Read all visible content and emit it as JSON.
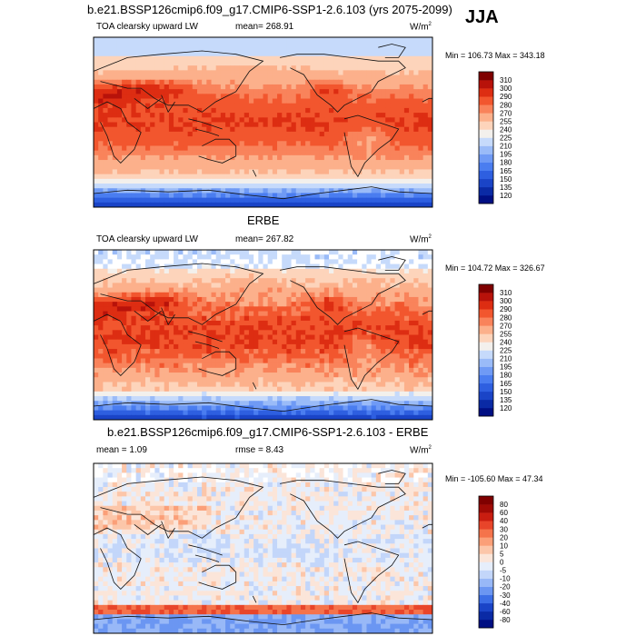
{
  "season": "JJA",
  "units_prefix": "W/m",
  "units_sup": "2",
  "chart_data": [
    {
      "type": "heatmap",
      "title": "b.e21.BSSP126cmip6.f09_g17.CMIP6-SSP1-2.6.103 (yrs 2075-2099)",
      "variable": "TOA clearsky upward LW",
      "mean_label": "mean= 268.91",
      "minmax_label": "Min = 106.73 Max = 343.18",
      "levels": [
        120,
        135,
        150,
        165,
        180,
        195,
        210,
        225,
        240,
        255,
        270,
        280,
        290,
        300,
        310
      ],
      "level_labels": [
        "120",
        "135",
        "150",
        "165",
        "180",
        "195",
        "210",
        "225",
        "240",
        "255",
        "270",
        "280",
        "290",
        "300",
        "310"
      ],
      "colors": [
        "#000f83",
        "#0a2aa5",
        "#1a44c7",
        "#2e5fe0",
        "#4a7df0",
        "#6f9af5",
        "#9abbf8",
        "#c6dafb",
        "#f3f0ec",
        "#fdd4bb",
        "#fcb08b",
        "#f9835b",
        "#f2562e",
        "#dd2d12",
        "#b8120a",
        "#7f0000"
      ],
      "grid": false
    },
    {
      "type": "heatmap",
      "title": "ERBE",
      "variable": "TOA clearsky upward LW",
      "mean_label": "mean= 267.82",
      "minmax_label": "Min = 104.72 Max = 326.67",
      "levels": [
        120,
        135,
        150,
        165,
        180,
        195,
        210,
        225,
        240,
        255,
        270,
        280,
        290,
        300,
        310
      ],
      "level_labels": [
        "120",
        "135",
        "150",
        "165",
        "180",
        "195",
        "210",
        "225",
        "240",
        "255",
        "270",
        "280",
        "290",
        "300",
        "310"
      ],
      "colors": [
        "#000f83",
        "#0a2aa5",
        "#1a44c7",
        "#2e5fe0",
        "#4a7df0",
        "#6f9af5",
        "#9abbf8",
        "#c6dafb",
        "#f3f0ec",
        "#fdd4bb",
        "#fcb08b",
        "#f9835b",
        "#f2562e",
        "#dd2d12",
        "#b8120a",
        "#7f0000"
      ],
      "grid": false
    },
    {
      "type": "heatmap",
      "title": "b.e21.BSSP126cmip6.f09_g17.CMIP6-SSP1-2.6.103 - ERBE",
      "mean_label": "mean =   1.09",
      "rmse_label": "rmse =   8.43",
      "minmax_label": "Min = -105.60 Max =  47.34",
      "levels": [
        -80,
        -60,
        -40,
        -30,
        -20,
        -10,
        -5,
        0,
        5,
        10,
        20,
        30,
        40,
        60,
        80
      ],
      "level_labels": [
        "-80",
        "-60",
        "-40",
        "-30",
        "-20",
        "-10",
        "-5",
        "0",
        "5",
        "10",
        "20",
        "30",
        "40",
        "60",
        "80"
      ],
      "colors": [
        "#000f83",
        "#0a2aa5",
        "#1a44c7",
        "#3c6ee6",
        "#6b96f2",
        "#98b8f7",
        "#c3d6fa",
        "#e6eefb",
        "#fbe5d9",
        "#fcc6a9",
        "#fb9f78",
        "#f5734b",
        "#e8452a",
        "#c91d10",
        "#a00a05",
        "#7f0000"
      ],
      "grid": false
    }
  ]
}
